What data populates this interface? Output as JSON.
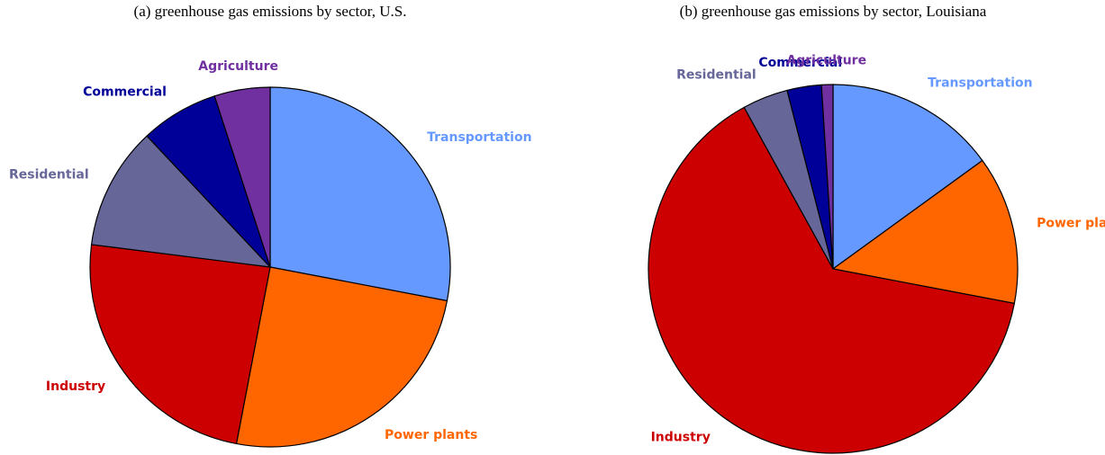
{
  "chart_data": [
    {
      "type": "pie",
      "title": "(a) greenhouse gas emissions by sector, U.S.",
      "categories": [
        "Transportation",
        "Power plants",
        "Industry",
        "Residential",
        "Commercial",
        "Agriculture"
      ],
      "values": [
        28,
        25,
        24,
        11,
        7,
        5
      ],
      "colors": [
        "#6699ff",
        "#ff6600",
        "#cc0000",
        "#666699",
        "#000099",
        "#7030a0"
      ]
    },
    {
      "type": "pie",
      "title": "(b) greenhouse gas emissions by sector, Louisiana",
      "categories": [
        "Transportation",
        "Power plants",
        "Industry",
        "Residential",
        "Commercial",
        "Agriculture"
      ],
      "values": [
        15,
        13,
        64,
        4,
        3,
        1
      ],
      "colors": [
        "#6699ff",
        "#ff6600",
        "#cc0000",
        "#666699",
        "#000099",
        "#7030a0"
      ]
    }
  ]
}
